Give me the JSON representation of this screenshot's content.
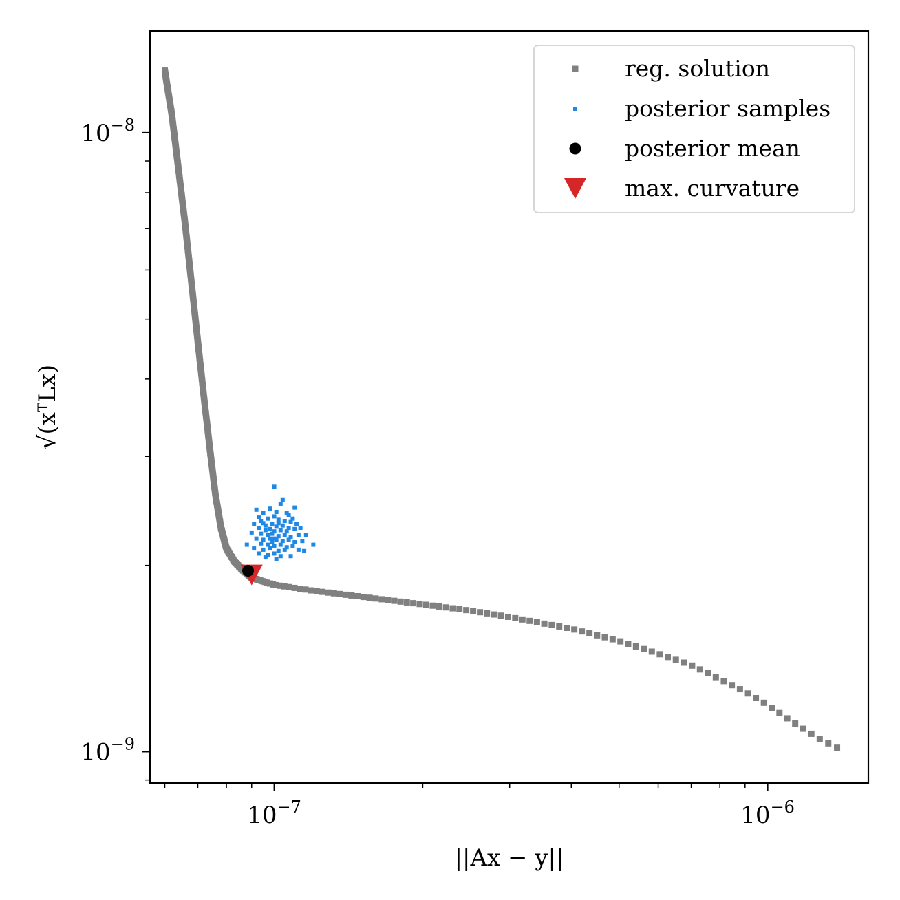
{
  "chart_data": {
    "type": "scatter",
    "title": "",
    "xlabel": "||Ax − y||",
    "ylabel": "√(xᵀLx)",
    "xscale": "log",
    "yscale": "log",
    "xlim": [
      5.6e-08,
      1.6e-06
    ],
    "ylim": [
      8.9e-10,
      1.46e-08
    ],
    "x_ticks": [
      {
        "value": 1e-07,
        "base": "10",
        "exp": "−7"
      },
      {
        "value": 1e-06,
        "base": "10",
        "exp": "−6"
      }
    ],
    "y_ticks": [
      {
        "value": 1e-08,
        "base": "10",
        "exp": "−8"
      },
      {
        "value": 1e-09,
        "base": "10",
        "exp": "−9"
      }
    ],
    "grid": false,
    "legend_position": "top-right",
    "colors": {
      "reg_solution": "#808080",
      "posterior_samples": "#1f88e5",
      "posterior_mean": "#000000",
      "max_curvature": "#d62728"
    },
    "series": [
      {
        "name": "reg. solution",
        "marker": "square",
        "curve_anchors": [
          [
            6e-08,
            1.26e-08
          ],
          [
            6.2e-08,
            1.07e-08
          ],
          [
            6.4e-08,
            8.7e-09
          ],
          [
            6.6e-08,
            7.1e-09
          ],
          [
            6.8e-08,
            5.7e-09
          ],
          [
            7e-08,
            4.6e-09
          ],
          [
            7.2e-08,
            3.75e-09
          ],
          [
            7.4e-08,
            3.1e-09
          ],
          [
            7.6e-08,
            2.6e-09
          ],
          [
            7.8e-08,
            2.3e-09
          ],
          [
            8e-08,
            2.13e-09
          ],
          [
            8.3e-08,
            2.03e-09
          ],
          [
            8.6e-08,
            1.97e-09
          ],
          [
            9e-08,
            1.91e-09
          ],
          [
            1e-07,
            1.86e-09
          ],
          [
            1.2e-07,
            1.82e-09
          ],
          [
            1.5e-07,
            1.78e-09
          ],
          [
            2e-07,
            1.73e-09
          ],
          [
            2.5e-07,
            1.69e-09
          ],
          [
            3e-07,
            1.65e-09
          ],
          [
            4e-07,
            1.58e-09
          ],
          [
            5e-07,
            1.51e-09
          ],
          [
            6e-07,
            1.44e-09
          ],
          [
            7e-07,
            1.38e-09
          ],
          [
            8e-07,
            1.31e-09
          ],
          [
            9e-07,
            1.25e-09
          ],
          [
            1e-06,
            1.19e-09
          ],
          [
            1.1e-06,
            1.13e-09
          ],
          [
            1.2e-06,
            1.08e-09
          ],
          [
            1.3e-06,
            1.04e-09
          ],
          [
            1.4e-06,
            1.01e-09
          ]
        ]
      },
      {
        "name": "posterior samples",
        "marker": "point",
        "points": [
          [
            1e-07,
            2.68e-09
          ],
          [
            9.2e-08,
            2.46e-09
          ],
          [
            9.5e-08,
            2.43e-09
          ],
          [
            1.03e-07,
            2.51e-09
          ],
          [
            1.06e-07,
            2.43e-09
          ],
          [
            1.1e-07,
            2.48e-09
          ],
          [
            1e-07,
            2.4e-09
          ],
          [
            9.7e-08,
            2.38e-09
          ],
          [
            9.4e-08,
            2.36e-09
          ],
          [
            1.02e-07,
            2.37e-09
          ],
          [
            1.05e-07,
            2.36e-09
          ],
          [
            1.08e-07,
            2.35e-09
          ],
          [
            9.1e-08,
            2.33e-09
          ],
          [
            9.6e-08,
            2.32e-09
          ],
          [
            9.9e-08,
            2.33e-09
          ],
          [
            1.01e-07,
            2.31e-09
          ],
          [
            1.04e-07,
            2.32e-09
          ],
          [
            1.07e-07,
            2.3e-09
          ],
          [
            9.3e-08,
            2.3e-09
          ],
          [
            9.6e-08,
            2.28e-09
          ],
          [
            9.8e-08,
            2.29e-09
          ],
          [
            1e-07,
            2.27e-09
          ],
          [
            1.03e-07,
            2.28e-09
          ],
          [
            1.06e-07,
            2.27e-09
          ],
          [
            1.1e-07,
            2.29e-09
          ],
          [
            1.13e-07,
            2.3e-09
          ],
          [
            9.4e-08,
            2.25e-09
          ],
          [
            9.7e-08,
            2.24e-09
          ],
          [
            9.9e-08,
            2.25e-09
          ],
          [
            1.02e-07,
            2.23e-09
          ],
          [
            1.05e-07,
            2.24e-09
          ],
          [
            1.08e-07,
            2.22e-09
          ],
          [
            1.12e-07,
            2.24e-09
          ],
          [
            1.16e-07,
            2.24e-09
          ],
          [
            9.2e-08,
            2.21e-09
          ],
          [
            9.5e-08,
            2.2e-09
          ],
          [
            9.8e-08,
            2.21e-09
          ],
          [
            1.01e-07,
            2.2e-09
          ],
          [
            1.04e-07,
            2.19e-09
          ],
          [
            1.07e-07,
            2.2e-09
          ],
          [
            1.1e-07,
            2.18e-09
          ],
          [
            1.14e-07,
            2.19e-09
          ],
          [
            1.2e-07,
            2.16e-09
          ],
          [
            8.8e-08,
            2.16e-09
          ],
          [
            9.4e-08,
            2.17e-09
          ],
          [
            9.7e-08,
            2.16e-09
          ],
          [
            1e-07,
            2.15e-09
          ],
          [
            1.03e-07,
            2.16e-09
          ],
          [
            1.06e-07,
            2.14e-09
          ],
          [
            1.09e-07,
            2.15e-09
          ],
          [
            9.1e-08,
            2.13e-09
          ],
          [
            9.5e-08,
            2.12e-09
          ],
          [
            9.8e-08,
            2.13e-09
          ],
          [
            1.02e-07,
            2.11e-09
          ],
          [
            1.05e-07,
            2.12e-09
          ],
          [
            1.12e-07,
            2.12e-09
          ],
          [
            1.15e-07,
            2.11e-09
          ],
          [
            9.3e-08,
            2.09e-09
          ],
          [
            9.7e-08,
            2.08e-09
          ],
          [
            1e-07,
            2.09e-09
          ],
          [
            1.03e-07,
            2.07e-09
          ],
          [
            9.6e-08,
            2.06e-09
          ],
          [
            1.01e-07,
            2.05e-09
          ],
          [
            1.08e-07,
            2.07e-09
          ],
          [
            9e-08,
            2.26e-09
          ],
          [
            9.3e-08,
            2.39e-09
          ],
          [
            1.09e-07,
            2.38e-09
          ],
          [
            1.04e-07,
            2.55e-09
          ],
          [
            9.8e-08,
            2.47e-09
          ],
          [
            1.01e-07,
            2.44e-09
          ],
          [
            1.07e-07,
            2.41e-09
          ],
          [
            9.9e-08,
            2.18e-09
          ],
          [
            1.11e-07,
            2.33e-09
          ],
          [
            9.5e-08,
            2.34e-09
          ],
          [
            1.02e-07,
            2.34e-09
          ],
          [
            1e-07,
            2.21e-09
          ]
        ]
      },
      {
        "name": "posterior mean",
        "marker": "circle",
        "points": [
          [
            8.85e-08,
            1.96e-09
          ]
        ]
      },
      {
        "name": "max. curvature",
        "marker": "triangle-down",
        "points": [
          [
            9e-08,
            1.93e-09
          ]
        ]
      }
    ]
  }
}
